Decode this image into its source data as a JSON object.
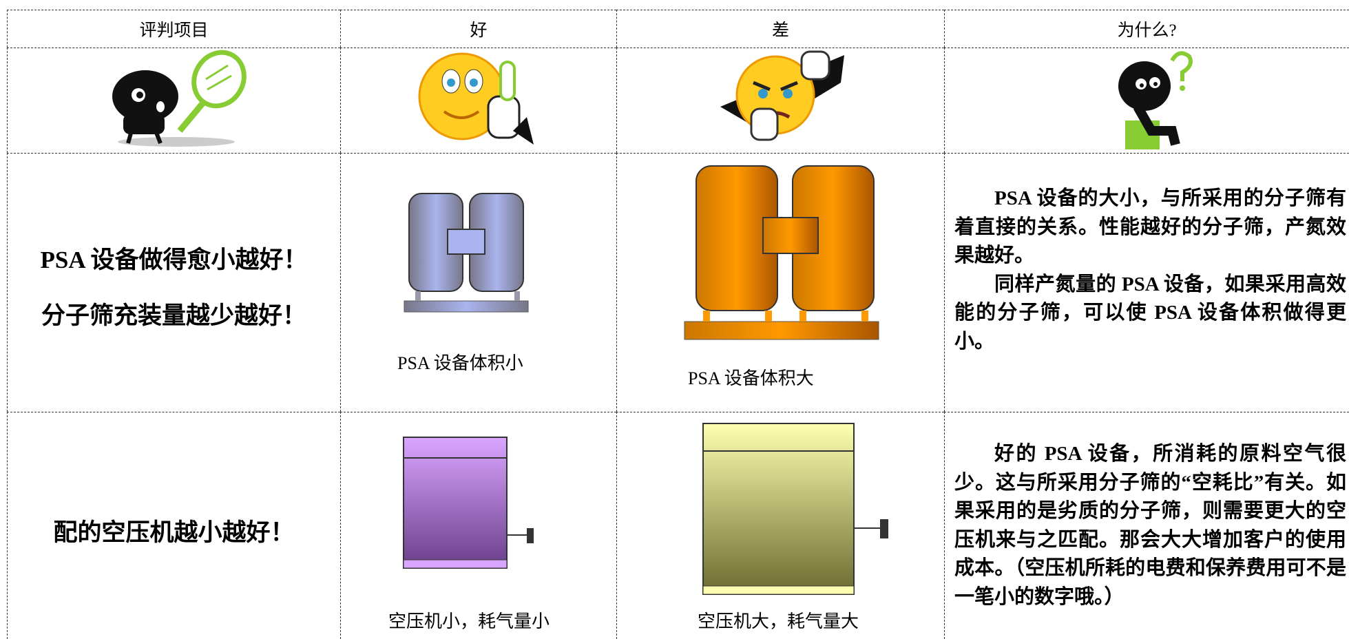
{
  "table": {
    "header": [
      "评判项目",
      "好",
      "差",
      "为什么?"
    ],
    "rows": [
      {
        "criterion": [
          "PSA 设备做得愈小越好！",
          "分子筛充装量越少越好！"
        ],
        "good_caption": "PSA 设备体积小",
        "bad_caption": "PSA 设备体积大",
        "why": [
          "PSA 设备的大小，与所采用的分子筛有着直接的关系。性能越好的分子筛，产氮效果越好。",
          "同样产氮量的 PSA 设备，如果采用高效能的分子筛，可以使 PSA 设备体积做得更小。"
        ]
      },
      {
        "criterion": [
          "配的空压机越小越好！"
        ],
        "good_caption": "空压机小，耗气量小",
        "bad_caption": "空压机大，耗气量大",
        "why": [
          "好的 PSA 设备，所消耗的原料空气很少。这与所采用分子筛的“空耗比”有关。如果采用的是劣质的分子筛，则需要更大的空压机来与之匹配。那会大大增加客户的使用成本。（空压机所耗的电费和保养费用可不是一笔小的数字哦。）"
        ]
      }
    ]
  }
}
